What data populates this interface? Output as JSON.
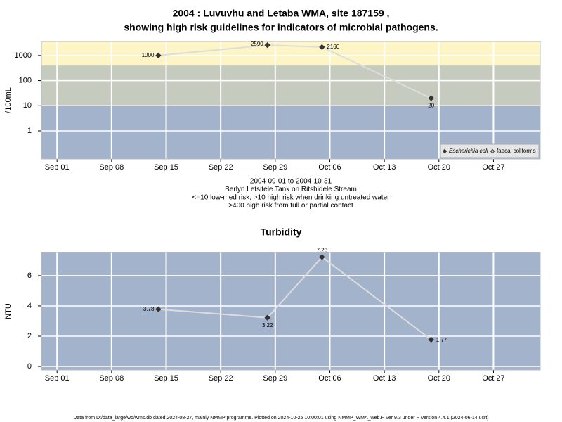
{
  "chart_data": [
    {
      "type": "line",
      "title": [
        "2004 : Luvuvhu and Letaba WMA, site 187159 ,",
        "showing high risk guidelines for indicators of microbial pathogens."
      ],
      "y_label": "/100mL",
      "log_y": true,
      "x": [
        "2004-09-14",
        "2004-09-28",
        "2004-10-05",
        "2004-10-19"
      ],
      "series": [
        {
          "name": "Escherichia coli",
          "color": "#333333",
          "line_color": "#dddddd",
          "marker": "filled",
          "values": [
            1000,
            2590,
            2160,
            20
          ]
        },
        {
          "name": "faecal coliforms",
          "color": "#333333",
          "line_color": "#dddddd",
          "marker": "open",
          "values": [
            null,
            null,
            null,
            null
          ]
        }
      ],
      "xlim": [
        "2004-08-30",
        "2004-11-02"
      ],
      "xticks": [
        {
          "value": "2004-09-01",
          "label": "Sep 01"
        },
        {
          "value": "2004-09-08",
          "label": "Sep 08"
        },
        {
          "value": "2004-09-15",
          "label": "Sep 15"
        },
        {
          "value": "2004-09-22",
          "label": "Sep 22"
        },
        {
          "value": "2004-09-29",
          "label": "Sep 29"
        },
        {
          "value": "2004-10-06",
          "label": "Oct 06"
        },
        {
          "value": "2004-10-13",
          "label": "Oct 13"
        },
        {
          "value": "2004-10-20",
          "label": "Oct 20"
        },
        {
          "value": "2004-10-27",
          "label": "Oct 27"
        }
      ],
      "ylim": [
        0.076,
        3600
      ],
      "yticks": [
        1,
        10,
        100,
        1000
      ],
      "band_limits": [
        10,
        400
      ],
      "band_colors": [
        "#a3b3cc",
        "#c5cbbf",
        "#fdf5c6"
      ],
      "grid": true,
      "legend": "bottom-right",
      "notes": [
        "2004-09-01 to 2004-10-31",
        "Berlyn Letsitele Tank on Ritshidele Stream",
        "<=10 low-med risk; >10 high risk when drinking untreated water",
        ">400 high risk from full or partial contact"
      ]
    },
    {
      "type": "line",
      "title": [
        "Turbidity"
      ],
      "y_label": "NTU",
      "log_y": false,
      "x": [
        "2004-09-14",
        "2004-09-28",
        "2004-10-05",
        "2004-10-19"
      ],
      "series": [
        {
          "name": "Turbidity",
          "color": "#333333",
          "line_color": "#dddddd",
          "marker": "filled",
          "values": [
            3.78,
            3.22,
            7.23,
            1.77
          ]
        }
      ],
      "xlim": [
        "2004-08-30",
        "2004-11-02"
      ],
      "xticks": [
        {
          "value": "2004-09-01",
          "label": "Sep 01"
        },
        {
          "value": "2004-09-08",
          "label": "Sep 08"
        },
        {
          "value": "2004-09-15",
          "label": "Sep 15"
        },
        {
          "value": "2004-09-22",
          "label": "Sep 22"
        },
        {
          "value": "2004-09-29",
          "label": "Sep 29"
        },
        {
          "value": "2004-10-06",
          "label": "Oct 06"
        },
        {
          "value": "2004-10-13",
          "label": "Oct 13"
        },
        {
          "value": "2004-10-20",
          "label": "Oct 20"
        },
        {
          "value": "2004-10-27",
          "label": "Oct 27"
        }
      ],
      "ylim": [
        -0.23,
        7.53
      ],
      "yticks": [
        0,
        2,
        4,
        6
      ],
      "background": "#a3b3cc",
      "grid": true
    }
  ],
  "footer": "Data from D:/data_large/wq/wms.db dated 2024-08-27, mainly NMMP programme. Plotted on 2024-10-25 10:00:01 using NMMP_WMA_web.R ver 9.3 under R version 4.4.1 (2024-06-14 ucrt)"
}
